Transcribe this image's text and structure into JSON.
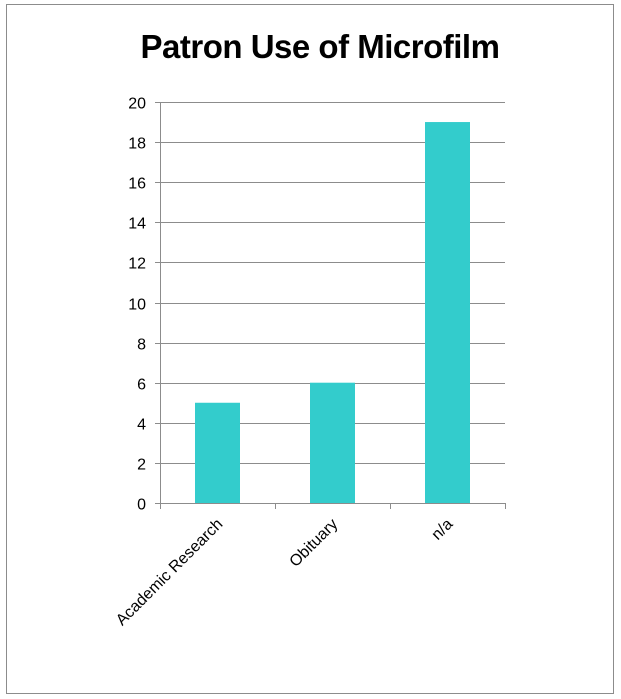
{
  "chart_data": {
    "type": "bar",
    "title": "Patron Use of Microfilm",
    "categories": [
      "Academic Research",
      "Obituary",
      "n/a"
    ],
    "values": [
      5,
      6,
      19
    ],
    "ylim": [
      0,
      20
    ],
    "yticks": [
      0,
      2,
      4,
      6,
      8,
      10,
      12,
      14,
      16,
      18,
      20
    ],
    "grid": true,
    "legend": "none",
    "bar_color": "#33CCCC"
  }
}
